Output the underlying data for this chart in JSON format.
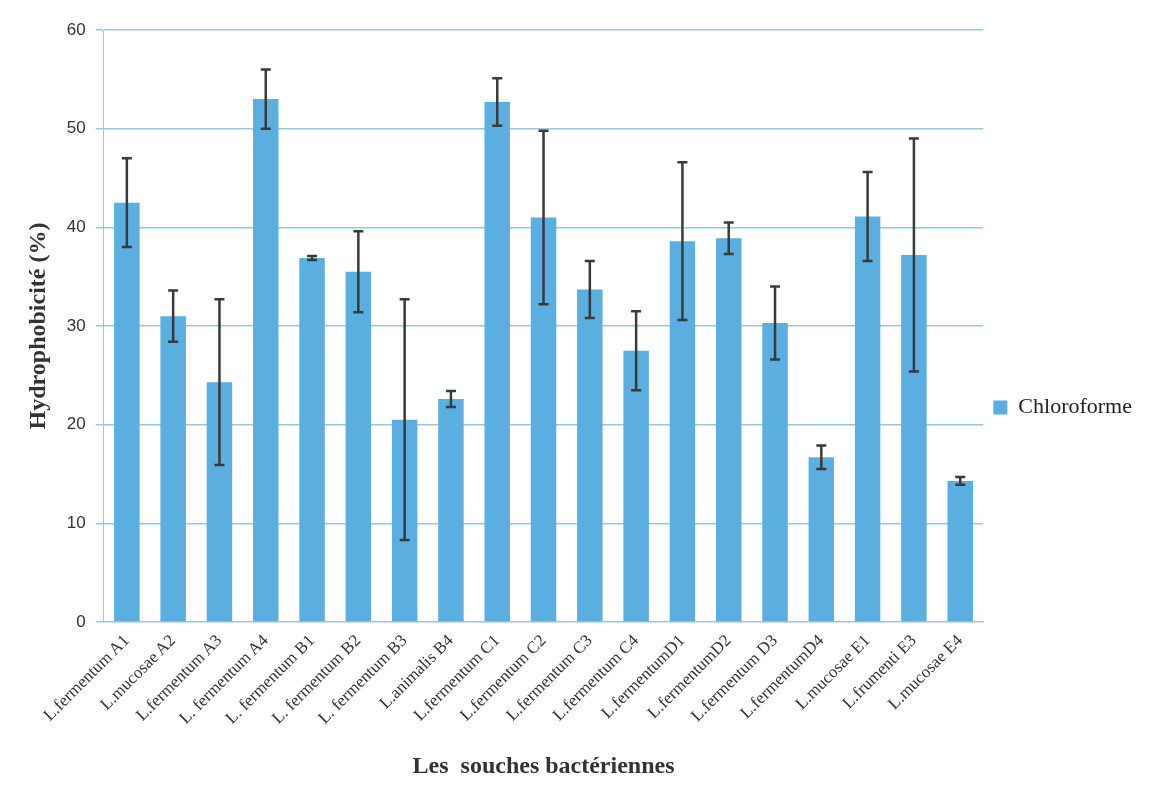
{
  "chart_data": {
    "type": "bar",
    "xlabel": "Les  souches bactériennes",
    "ylabel": "Hydrophobicité (%)",
    "categories": [
      "L.fermentum A1",
      "L.mucosae A2",
      "L.fermentum A3",
      "L. fermentum A4",
      "L. fermentum B1",
      "L. fermentum B2",
      "L. fermentum B3",
      "L.animalis B4",
      "L.fermentum C1",
      "L.fermentum C2",
      "L.fermentum C3",
      "L.fermentum C4",
      "L.fermentumD1",
      "L.fermentumD2",
      "L.fermentum D3",
      "L.fermentumD4",
      "L.mucosae E1",
      "L.frumenti E3",
      "L.mucosae E4"
    ],
    "series": [
      {
        "name": "Chloroforme",
        "color": "#5aaee0",
        "values": [
          42.5,
          31,
          24.3,
          53,
          36.9,
          35.5,
          20.5,
          22.6,
          52.7,
          41,
          33.7,
          27.5,
          38.6,
          38.9,
          30.3,
          16.7,
          41.1,
          37.2,
          14.3
        ],
        "errors": [
          4.5,
          2.6,
          8.4,
          3,
          0.2,
          4.1,
          12.2,
          0.8,
          2.4,
          8.8,
          2.9,
          4,
          8,
          1.6,
          3.7,
          1.2,
          4.5,
          11.8,
          0.4
        ]
      }
    ],
    "ylim": [
      0,
      60
    ],
    "yticks": [
      0,
      10,
      20,
      30,
      40,
      50,
      60
    ],
    "grid": "y",
    "legend": "right"
  }
}
